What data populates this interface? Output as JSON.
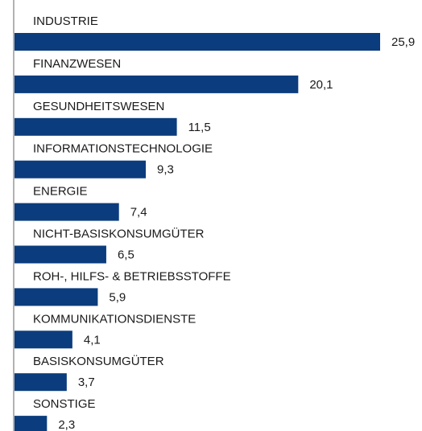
{
  "chart_data": {
    "type": "bar",
    "orientation": "horizontal",
    "color": "#0b3c7d",
    "categories": [
      "INDUSTRIE",
      "FINANZWESEN",
      "GESUNDHEITSWESEN",
      "INFORMATIONSTECHNOLOGIE",
      "ENERGIE",
      "NICHT-BASISKONSUMGÜTER",
      "ROH-, HILFS- & BETRIEBSSTOFFE",
      "KOMMUNIKATIONSDIENSTE",
      "BASISKONSUMGÜTER",
      "SONSTIGE"
    ],
    "values": [
      25.9,
      20.1,
      11.5,
      9.3,
      7.4,
      6.5,
      5.9,
      4.1,
      3.7,
      2.3
    ],
    "value_labels": [
      "25,9",
      "20,1",
      "11,5",
      "9,3",
      "7,4",
      "6,5",
      "5,9",
      "4,1",
      "3,7",
      "2,3"
    ]
  }
}
